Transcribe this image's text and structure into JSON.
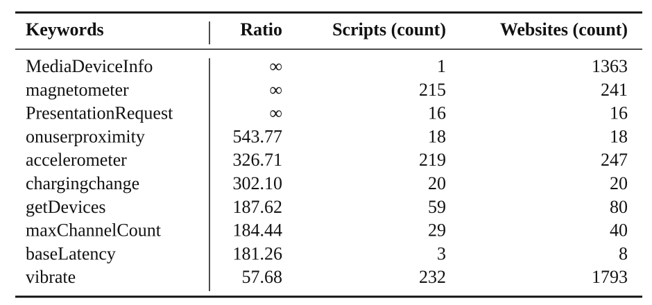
{
  "table": {
    "header": [
      "Keywords",
      "Ratio",
      "Scripts (count)",
      "Websites (count)"
    ],
    "rows": [
      [
        "MediaDeviceInfo",
        "∞",
        "1",
        "1363"
      ],
      [
        "magnetometer",
        "∞",
        "215",
        "241"
      ],
      [
        "PresentationRequest",
        "∞",
        "16",
        "16"
      ],
      [
        "onuserproximity",
        "543.77",
        "18",
        "18"
      ],
      [
        "accelerometer",
        "326.71",
        "219",
        "247"
      ],
      [
        "chargingchange",
        "302.10",
        "20",
        "20"
      ],
      [
        "getDevices",
        "187.62",
        "59",
        "80"
      ],
      [
        "maxChannelCount",
        "184.44",
        "29",
        "40"
      ],
      [
        "baseLatency",
        "181.26",
        "3",
        "8"
      ],
      [
        "vibrate",
        "57.68",
        "232",
        "1793"
      ]
    ]
  }
}
